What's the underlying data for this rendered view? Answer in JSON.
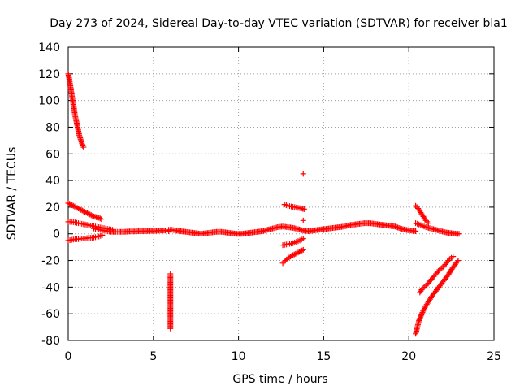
{
  "chart_data": {
    "type": "scatter",
    "title": "Day 273 of 2024, Sidereal Day-to-day VTEC variation (SDTVAR) for receiver bla1",
    "xlabel": "GPS time / hours",
    "ylabel": "SDTVAR / TECUs",
    "xlim": [
      0,
      25
    ],
    "ylim": [
      -80,
      140
    ],
    "xticks": [
      0,
      5,
      10,
      15,
      20,
      25
    ],
    "yticks": [
      -80,
      -60,
      -40,
      -20,
      0,
      20,
      40,
      60,
      80,
      100,
      120,
      140
    ],
    "grid": true,
    "marker": "+",
    "color": "#ff0000",
    "series": [
      {
        "points": [
          [
            0.0,
            120
          ],
          [
            0.05,
            117
          ],
          [
            0.1,
            113
          ],
          [
            0.15,
            109
          ],
          [
            0.2,
            105
          ],
          [
            0.25,
            101
          ],
          [
            0.3,
            97
          ],
          [
            0.35,
            93
          ],
          [
            0.4,
            89
          ],
          [
            0.45,
            86
          ],
          [
            0.5,
            83
          ],
          [
            0.55,
            80
          ],
          [
            0.6,
            77
          ],
          [
            0.65,
            74
          ],
          [
            0.7,
            72
          ],
          [
            0.75,
            70
          ],
          [
            0.8,
            68
          ],
          [
            0.85,
            66
          ],
          [
            0.9,
            65
          ]
        ]
      },
      {
        "points": [
          [
            0.0,
            23
          ],
          [
            0.15,
            22
          ],
          [
            0.3,
            21
          ],
          [
            0.45,
            20
          ],
          [
            0.6,
            19
          ],
          [
            0.75,
            18
          ],
          [
            0.9,
            17
          ],
          [
            1.05,
            16
          ],
          [
            1.2,
            15
          ],
          [
            1.35,
            14
          ],
          [
            1.5,
            13
          ],
          [
            1.65,
            12.5
          ],
          [
            1.8,
            12
          ],
          [
            1.95,
            11
          ]
        ]
      },
      {
        "points": [
          [
            0.0,
            9
          ],
          [
            0.2,
            9
          ],
          [
            0.4,
            8.5
          ],
          [
            0.6,
            8
          ],
          [
            0.8,
            7.5
          ],
          [
            1.0,
            7
          ],
          [
            1.2,
            6.5
          ],
          [
            1.4,
            6
          ],
          [
            1.6,
            5.5
          ],
          [
            1.8,
            5
          ],
          [
            2.0,
            4.5
          ],
          [
            2.2,
            4
          ],
          [
            2.4,
            3.5
          ],
          [
            2.6,
            3
          ]
        ]
      },
      {
        "points": [
          [
            0.0,
            -5
          ],
          [
            0.2,
            -4.5
          ],
          [
            0.4,
            -4
          ],
          [
            0.6,
            -4
          ],
          [
            0.8,
            -3.5
          ],
          [
            1.0,
            -3.5
          ],
          [
            1.2,
            -3
          ],
          [
            1.4,
            -3
          ],
          [
            1.6,
            -2.5
          ],
          [
            1.8,
            -2
          ],
          [
            2.0,
            -1
          ]
        ]
      },
      {
        "points": [
          [
            1.5,
            4
          ],
          [
            1.7,
            3.5
          ],
          [
            1.9,
            3
          ],
          [
            2.1,
            2.5
          ],
          [
            2.3,
            2
          ],
          [
            2.5,
            1.5
          ],
          [
            2.8,
            1.5
          ],
          [
            3.0,
            1.5
          ],
          [
            3.3,
            1.5
          ],
          [
            3.6,
            1.8
          ],
          [
            3.9,
            1.8
          ],
          [
            4.2,
            2
          ],
          [
            4.5,
            2
          ],
          [
            4.8,
            2.2
          ],
          [
            5.1,
            2.2
          ],
          [
            5.4,
            2.5
          ],
          [
            5.7,
            2.5
          ],
          [
            5.9,
            3
          ],
          [
            6.1,
            3
          ],
          [
            6.3,
            2.5
          ],
          [
            6.6,
            2
          ],
          [
            6.9,
            1.5
          ],
          [
            7.2,
            1
          ],
          [
            7.5,
            0.5
          ],
          [
            7.8,
            0
          ],
          [
            8.1,
            0.5
          ],
          [
            8.4,
            1
          ],
          [
            8.7,
            1.5
          ],
          [
            9.0,
            1.5
          ],
          [
            9.3,
            1
          ],
          [
            9.6,
            0.5
          ],
          [
            9.9,
            0
          ],
          [
            10.2,
            0
          ],
          [
            10.5,
            0.5
          ],
          [
            10.8,
            1
          ],
          [
            11.1,
            1.5
          ],
          [
            11.4,
            2
          ],
          [
            11.7,
            3
          ],
          [
            12.0,
            4
          ],
          [
            12.3,
            5
          ],
          [
            12.6,
            5.5
          ],
          [
            12.9,
            5
          ],
          [
            13.2,
            4.5
          ],
          [
            13.5,
            3.5
          ],
          [
            13.8,
            2.5
          ],
          [
            14.1,
            2
          ],
          [
            14.4,
            2.5
          ],
          [
            14.7,
            3
          ],
          [
            15.0,
            3.5
          ],
          [
            15.3,
            4
          ],
          [
            15.6,
            4.5
          ],
          [
            15.9,
            5
          ],
          [
            16.2,
            5.5
          ],
          [
            16.5,
            6.5
          ],
          [
            16.8,
            7
          ],
          [
            17.1,
            7.5
          ],
          [
            17.4,
            8
          ],
          [
            17.7,
            8
          ],
          [
            18.0,
            7.5
          ],
          [
            18.3,
            7
          ],
          [
            18.6,
            6.5
          ],
          [
            18.9,
            6
          ],
          [
            19.2,
            5.5
          ],
          [
            19.5,
            4
          ],
          [
            19.8,
            3
          ],
          [
            20.1,
            2.5
          ],
          [
            20.4,
            2
          ]
        ]
      },
      {
        "points": [
          [
            5.9,
            2
          ],
          [
            6.0,
            -30
          ],
          [
            6.0,
            -41
          ],
          [
            6.0,
            -48
          ],
          [
            6.0,
            -71
          ]
        ]
      },
      {
        "points": [
          [
            12.7,
            22
          ],
          [
            12.9,
            21
          ],
          [
            13.1,
            20.5
          ],
          [
            13.3,
            20
          ],
          [
            13.5,
            19.5
          ],
          [
            13.7,
            19
          ],
          [
            13.85,
            18.5
          ]
        ]
      },
      {
        "points": [
          [
            13.8,
            45
          ],
          [
            13.8,
            10
          ]
        ]
      },
      {
        "points": [
          [
            12.6,
            -22
          ],
          [
            12.75,
            -20
          ],
          [
            12.9,
            -18.5
          ],
          [
            13.05,
            -17
          ],
          [
            13.2,
            -16
          ],
          [
            13.35,
            -15
          ],
          [
            13.5,
            -14
          ],
          [
            13.65,
            -13
          ],
          [
            13.8,
            -12
          ]
        ]
      },
      {
        "points": [
          [
            12.6,
            -8.5
          ],
          [
            12.8,
            -8
          ],
          [
            13.0,
            -7.5
          ],
          [
            13.2,
            -7
          ],
          [
            13.4,
            -6
          ],
          [
            13.6,
            -5
          ],
          [
            13.8,
            -3.5
          ]
        ]
      },
      {
        "points": [
          [
            20.4,
            21
          ],
          [
            20.55,
            19
          ],
          [
            20.7,
            16
          ],
          [
            20.85,
            13
          ],
          [
            21.0,
            10
          ],
          [
            21.15,
            8
          ]
        ]
      },
      {
        "points": [
          [
            20.4,
            8
          ],
          [
            20.6,
            7
          ],
          [
            20.8,
            6
          ],
          [
            21.0,
            5
          ],
          [
            21.3,
            4
          ],
          [
            21.6,
            3
          ],
          [
            21.9,
            2
          ],
          [
            22.2,
            1
          ],
          [
            22.5,
            0.5
          ],
          [
            22.8,
            0
          ],
          [
            22.95,
            0
          ]
        ]
      },
      {
        "points": [
          [
            20.4,
            -75
          ],
          [
            20.5,
            -70
          ],
          [
            20.6,
            -65
          ],
          [
            20.8,
            -59
          ],
          [
            21.0,
            -54
          ],
          [
            21.2,
            -50
          ],
          [
            21.4,
            -46
          ],
          [
            21.7,
            -41
          ],
          [
            22.0,
            -36
          ],
          [
            22.3,
            -31
          ],
          [
            22.6,
            -25
          ],
          [
            22.9,
            -20
          ]
        ]
      },
      {
        "points": [
          [
            20.65,
            -44
          ],
          [
            20.8,
            -41
          ],
          [
            21.0,
            -39
          ],
          [
            21.2,
            -36
          ],
          [
            21.4,
            -33
          ],
          [
            21.6,
            -30
          ],
          [
            21.8,
            -27
          ],
          [
            22.0,
            -25
          ],
          [
            22.2,
            -22
          ],
          [
            22.4,
            -19
          ],
          [
            22.6,
            -17
          ]
        ]
      }
    ]
  }
}
